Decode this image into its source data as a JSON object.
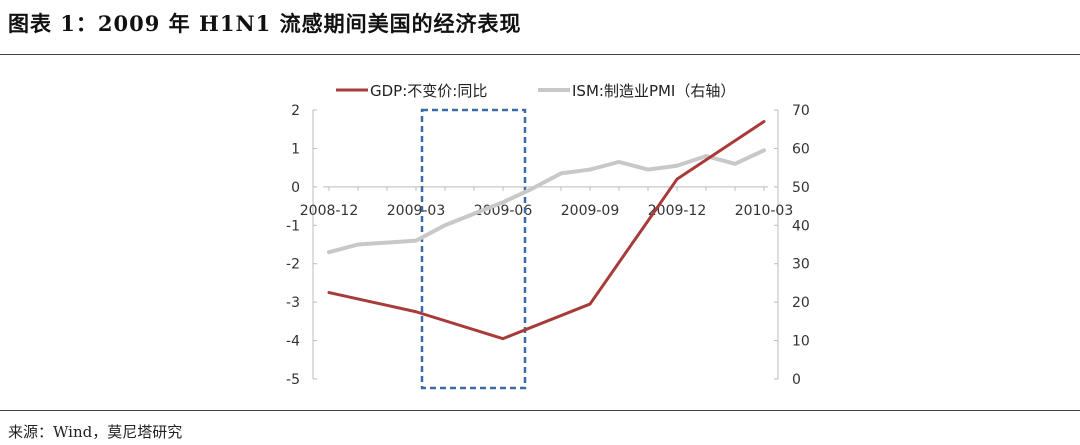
{
  "title": "图表 1：2009 年 H1N1 流感期间美国的经济表现",
  "source": "来源：Wind，莫尼塔研究",
  "chart_data": {
    "type": "line",
    "x": [
      "2008-12",
      "2009-01",
      "2009-02",
      "2009-03",
      "2009-04",
      "2009-05",
      "2009-06",
      "2009-07",
      "2009-08",
      "2009-09",
      "2009-10",
      "2009-11",
      "2009-12",
      "2010-01",
      "2010-02",
      "2010-03"
    ],
    "xtick_labels": [
      "2008-12",
      "2009-03",
      "2009-06",
      "2009-09",
      "2009-12",
      "2010-03"
    ],
    "series": [
      {
        "name": "GDP:不变价:同比",
        "axis": "left",
        "color": "#a83a3a",
        "x": [
          "2008-12",
          "2009-03",
          "2009-06",
          "2009-09",
          "2009-12",
          "2010-03"
        ],
        "values": [
          -2.75,
          -3.25,
          -3.95,
          -3.05,
          0.2,
          1.7
        ]
      },
      {
        "name": "ISM:制造业PMI（右轴）",
        "axis": "right",
        "color": "#c8c8c8",
        "x": [
          "2008-12",
          "2009-01",
          "2009-02",
          "2009-03",
          "2009-04",
          "2009-05",
          "2009-06",
          "2009-07",
          "2009-08",
          "2009-09",
          "2009-10",
          "2009-11",
          "2009-12",
          "2010-01",
          "2010-02",
          "2010-03"
        ],
        "values": [
          33,
          35,
          35.5,
          36,
          40,
          43,
          46,
          49.5,
          53.5,
          54.5,
          56.5,
          54.5,
          55.5,
          58,
          56,
          59.5
        ]
      }
    ],
    "ylim_left": [
      -5,
      2
    ],
    "yticks_left": [
      "2",
      "1",
      "0",
      "-1",
      "-2",
      "-3",
      "-4",
      "-5"
    ],
    "ylim_right": [
      0,
      70
    ],
    "yticks_right": [
      "70",
      "60",
      "50",
      "40",
      "30",
      "20",
      "10",
      "0"
    ],
    "highlight_range": [
      "2009-03",
      "2009-06"
    ],
    "highlight_color": "#3a6aa8",
    "legend_position": "top"
  }
}
